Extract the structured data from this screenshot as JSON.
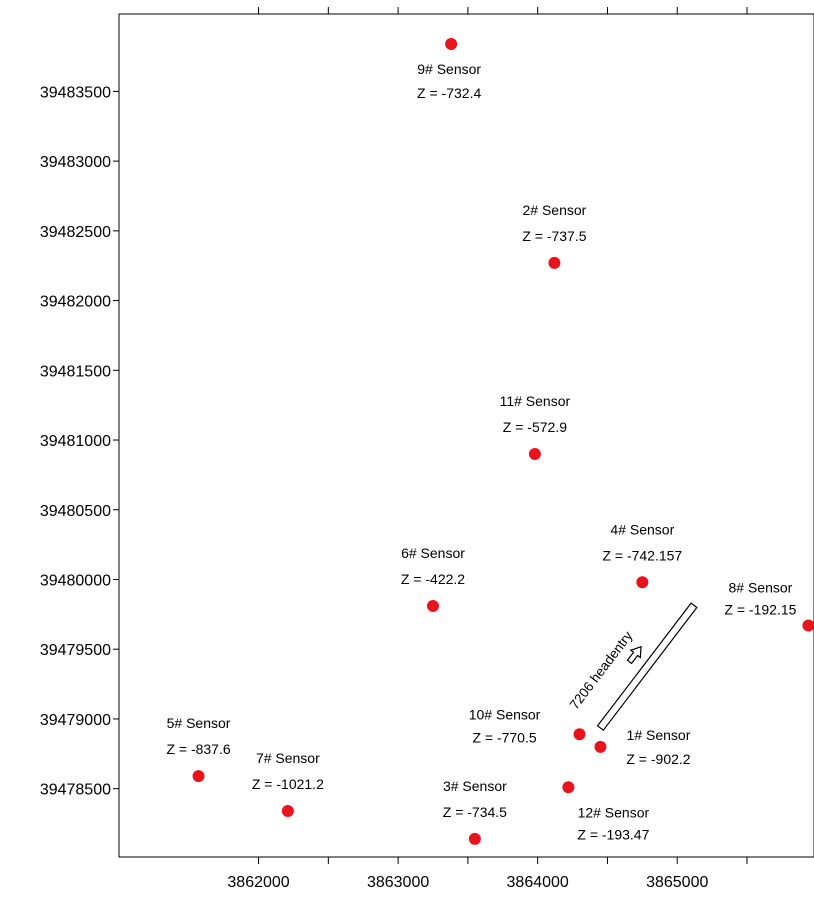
{
  "chart_data": {
    "type": "scatter",
    "title": "",
    "xlabel": "",
    "ylabel": "",
    "xlim": [
      3861000,
      3865980
    ],
    "ylim": [
      39478010,
      39484055
    ],
    "x_ticks": [
      3862000,
      3863000,
      3864000,
      3865000
    ],
    "x_minor_ticks": [
      3862500,
      3863500,
      3864500,
      3865500
    ],
    "y_ticks": [
      39478500,
      39479000,
      39479500,
      39480000,
      39480500,
      39481000,
      39481500,
      39482000,
      39482500,
      39483000,
      39483500
    ],
    "x_tick_labels": [
      "3862000",
      "3863000",
      "3864000",
      "3865000"
    ],
    "y_tick_labels": [
      "39478500",
      "39479000",
      "39479500",
      "39480000",
      "39480500",
      "39481000",
      "39481500",
      "39482000",
      "39482500",
      "39483000",
      "39483500"
    ],
    "grid": false,
    "marker_color": "#e8141b",
    "points": [
      {
        "name": "9# Sensor",
        "z_label": "Z = -732.4",
        "x": 3863380,
        "y": 39483840,
        "label_pos": "below"
      },
      {
        "name": "2# Sensor",
        "z_label": "Z = -737.5",
        "x": 3864120,
        "y": 39482270,
        "label_pos": "above"
      },
      {
        "name": "11# Sensor",
        "z_label": "Z = -572.9",
        "x": 3863980,
        "y": 39480900,
        "label_pos": "above"
      },
      {
        "name": "4# Sensor",
        "z_label": "Z = -742.157",
        "x": 3864750,
        "y": 39479980,
        "label_pos": "above"
      },
      {
        "name": "6# Sensor",
        "z_label": "Z = -422.2",
        "x": 3863250,
        "y": 39479810,
        "label_pos": "above"
      },
      {
        "name": "8# Sensor",
        "z_label": "Z = -192.15",
        "x": 3865940,
        "y": 39479670,
        "label_pos": "above-left"
      },
      {
        "name": "10# Sensor",
        "z_label": "Z = -770.5",
        "x": 3864300,
        "y": 39478890,
        "label_pos": "left"
      },
      {
        "name": "1# Sensor",
        "z_label": "Z = -902.2",
        "x": 3864450,
        "y": 39478800,
        "label_pos": "right"
      },
      {
        "name": "5# Sensor",
        "z_label": "Z = -837.6",
        "x": 3861570,
        "y": 39478590,
        "label_pos": "above"
      },
      {
        "name": "7# Sensor",
        "z_label": "Z = -1021.2",
        "x": 3862210,
        "y": 39478340,
        "label_pos": "above"
      },
      {
        "name": "3# Sensor",
        "z_label": "Z = -734.5",
        "x": 3863550,
        "y": 39478140,
        "label_pos": "above"
      },
      {
        "name": "12# Sensor",
        "z_label": "Z = -193.47",
        "x": 3864220,
        "y": 39478510,
        "label_pos": "below-right"
      }
    ],
    "annotation": {
      "text": "7206 headentry",
      "roadway_start": [
        3864450,
        39478935
      ],
      "roadway_end": [
        3865120,
        39479815
      ],
      "arrow_direction": "toward 8# Sensor"
    }
  }
}
